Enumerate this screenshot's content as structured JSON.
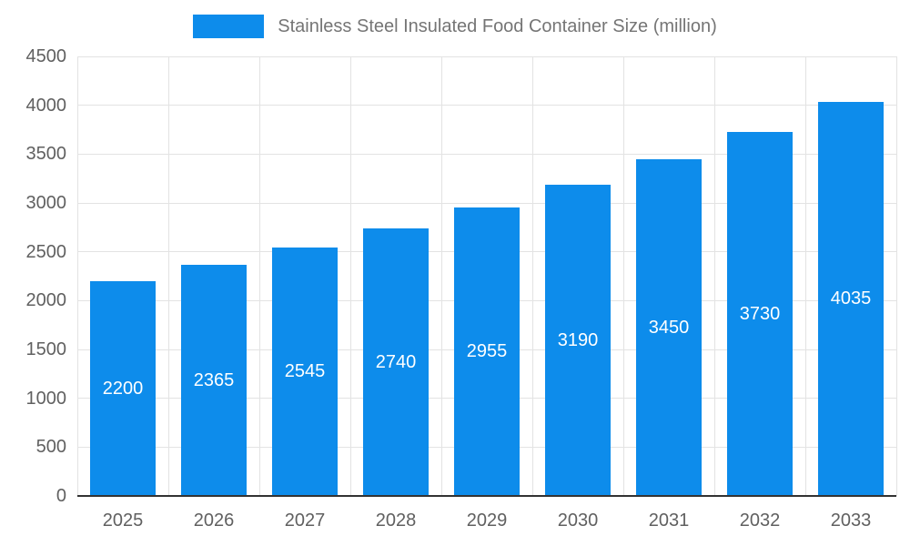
{
  "chart_data": {
    "type": "bar",
    "title": "Stainless Steel Insulated Food Container Size (million)",
    "categories": [
      "2025",
      "2026",
      "2027",
      "2028",
      "2029",
      "2030",
      "2031",
      "2032",
      "2033"
    ],
    "values": [
      2200,
      2365,
      2545,
      2740,
      2955,
      3190,
      3450,
      3730,
      4035
    ],
    "xlabel": "",
    "ylabel": "",
    "ylim": [
      0,
      4500
    ],
    "yticks": [
      0,
      500,
      1000,
      1500,
      2000,
      2500,
      3000,
      3500,
      4000,
      4500
    ],
    "grid": true,
    "legend_position": "top",
    "bar_color": "#0d8ceb",
    "value_label_color": "#ffffff",
    "axis_text_color": "#606060",
    "grid_color": "#e3e3e3",
    "axis_line_color": "#333333",
    "title_color": "#757575"
  }
}
